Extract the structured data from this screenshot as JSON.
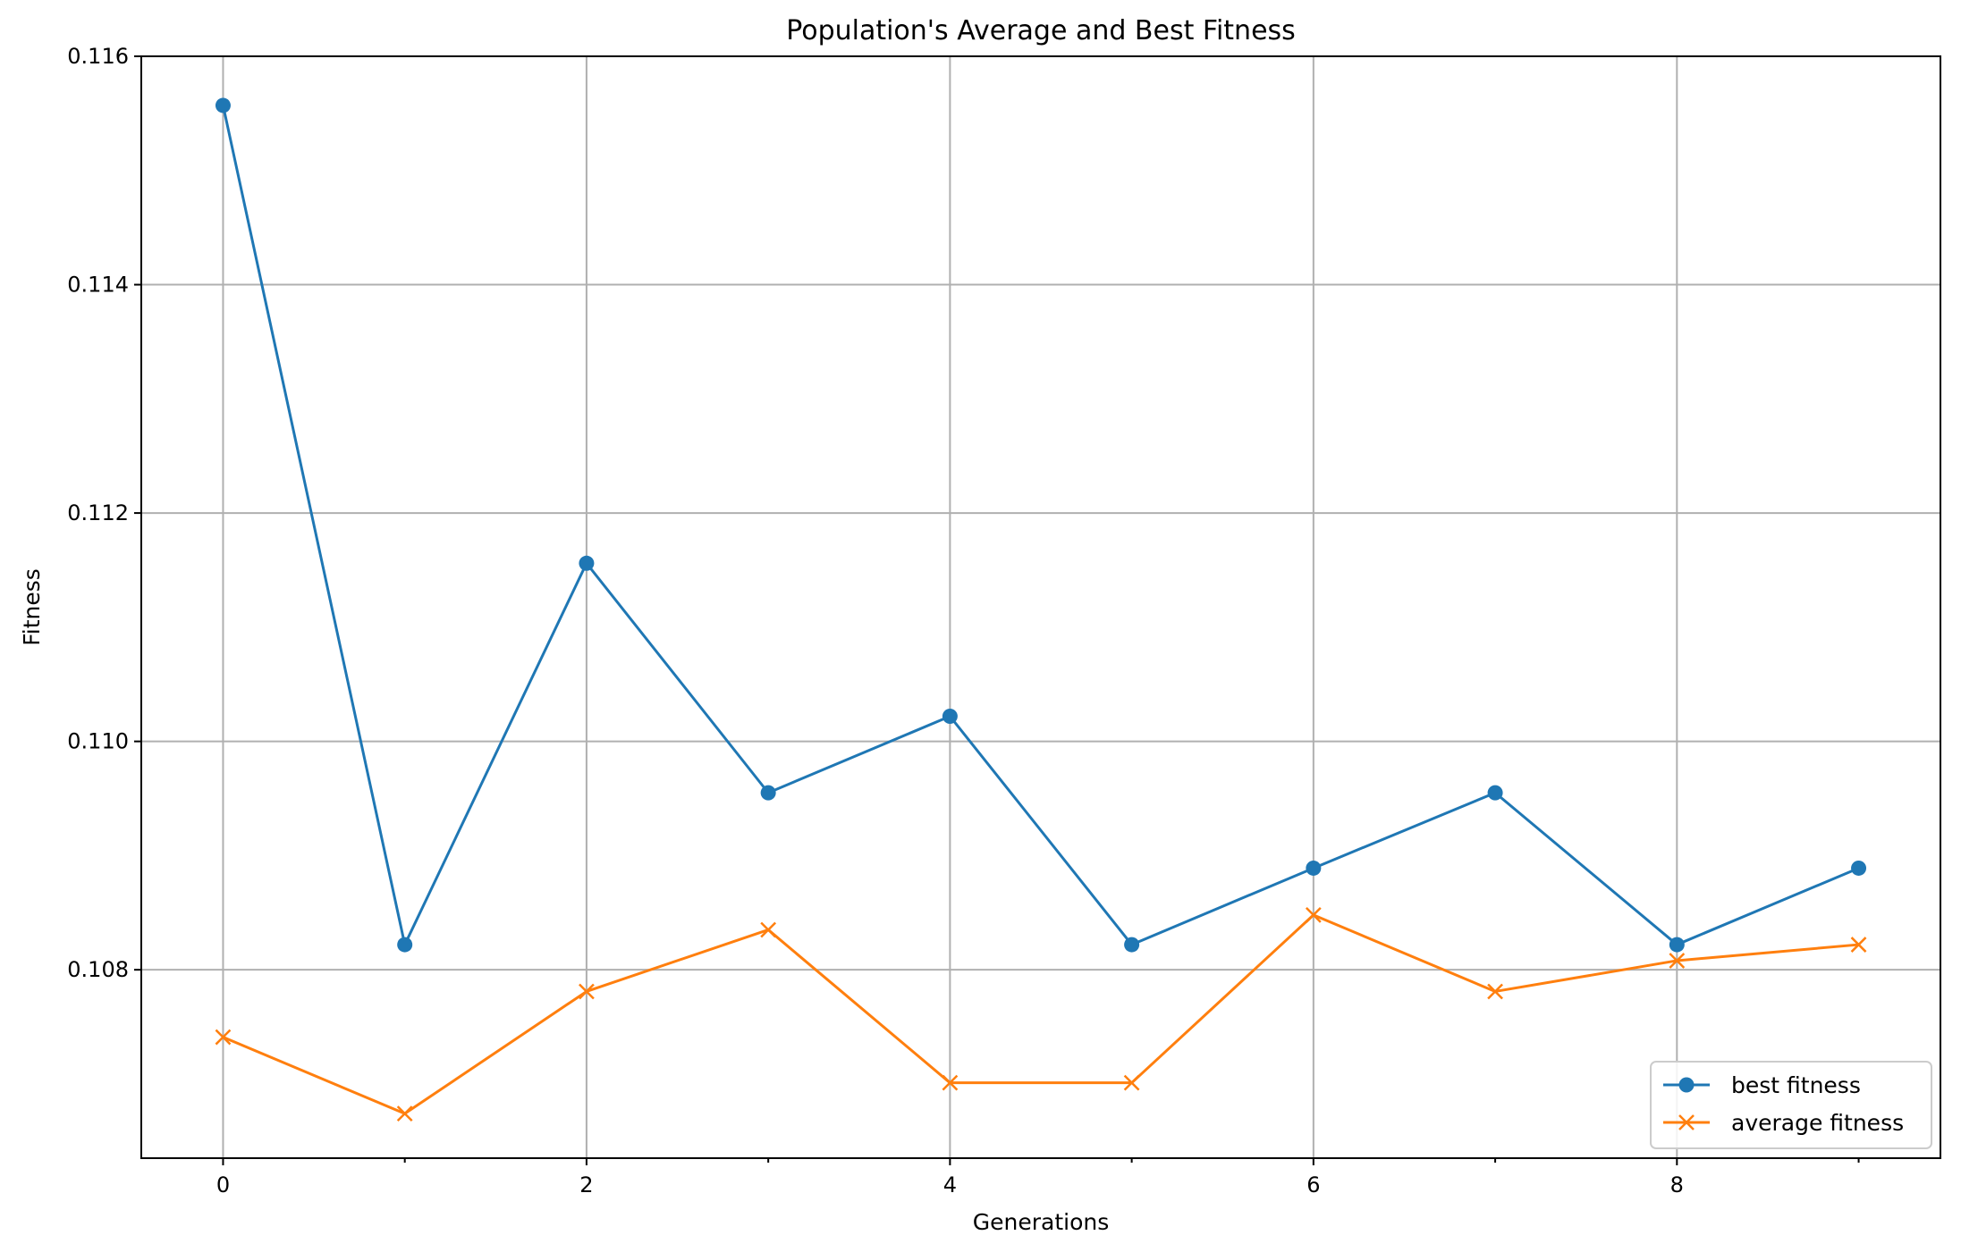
{
  "chart_data": {
    "type": "line",
    "title": "Population's Average and Best Fitness",
    "xlabel": "Generations",
    "ylabel": "Fitness",
    "xlim": [
      -0.45,
      9.45
    ],
    "ylim": [
      0.10635,
      0.116
    ],
    "x_ticks": [
      0,
      2,
      4,
      6,
      8
    ],
    "x_tick_labels": [
      "0",
      "2",
      "4",
      "6",
      "8"
    ],
    "x_minor_ticks": [
      1,
      3,
      5,
      7,
      9
    ],
    "y_ticks": [
      0.108,
      0.11,
      0.112,
      0.114,
      0.116
    ],
    "y_tick_labels": [
      "0.108",
      "0.110",
      "0.112",
      "0.114",
      "0.116"
    ],
    "grid": true,
    "legend_position": "lower-right",
    "x": [
      0,
      1,
      2,
      3,
      4,
      5,
      6,
      7,
      8,
      9
    ],
    "series": [
      {
        "name": "best fitness",
        "color": "#1f77b4",
        "marker": "circle",
        "values": [
          0.11557,
          0.10822,
          0.11156,
          0.10955,
          0.11022,
          0.10822,
          0.10889,
          0.10955,
          0.10822,
          0.10889
        ]
      },
      {
        "name": "average fitness",
        "color": "#ff7f0e",
        "marker": "x",
        "values": [
          0.10741,
          0.10674,
          0.10781,
          0.10835,
          0.10701,
          0.10701,
          0.10848,
          0.10781,
          0.10808,
          0.10822
        ]
      }
    ]
  }
}
